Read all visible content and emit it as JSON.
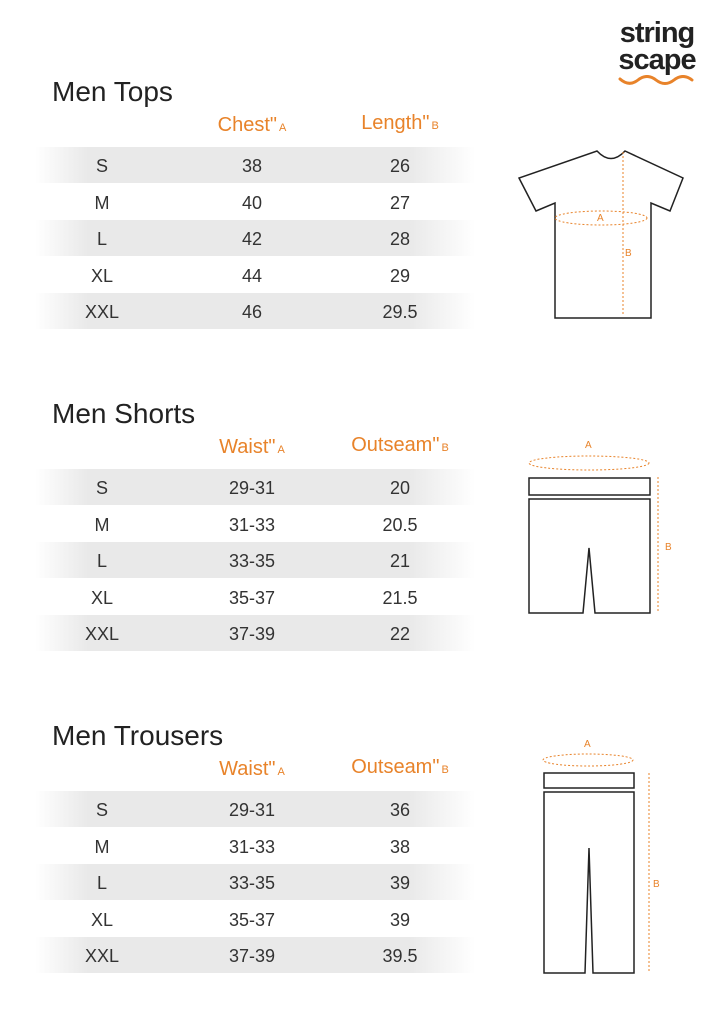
{
  "brand": {
    "line1": "string",
    "line2": "scape",
    "accent": "#e8832a"
  },
  "sections": [
    {
      "title": "Men Tops",
      "col_a": "Chest\"",
      "col_a_mark": "A",
      "col_b": "Length\"",
      "col_b_mark": "B",
      "rows": [
        [
          "S",
          "38",
          "26"
        ],
        [
          "M",
          "40",
          "27"
        ],
        [
          "L",
          "42",
          "28"
        ],
        [
          "XL",
          "44",
          "29"
        ],
        [
          "XXL",
          "46",
          "29.5"
        ]
      ],
      "figure": {
        "icon": "t-shirt-diagram",
        "label_a": "A",
        "label_b": "B"
      }
    },
    {
      "title": "Men Shorts",
      "col_a": "Waist\"",
      "col_a_mark": "A",
      "col_b": "Outseam\"",
      "col_b_mark": "B",
      "rows": [
        [
          "S",
          "29-31",
          "20"
        ],
        [
          "M",
          "31-33",
          "20.5"
        ],
        [
          "L",
          "33-35",
          "21"
        ],
        [
          "XL",
          "35-37",
          "21.5"
        ],
        [
          "XXL",
          "37-39",
          "22"
        ]
      ],
      "figure": {
        "icon": "shorts-diagram",
        "label_a": "A",
        "label_b": "B"
      }
    },
    {
      "title": "Men Trousers",
      "col_a": "Waist\"",
      "col_a_mark": "A",
      "col_b": "Outseam\"",
      "col_b_mark": "B",
      "rows": [
        [
          "S",
          "29-31",
          "36"
        ],
        [
          "M",
          "31-33",
          "38"
        ],
        [
          "L",
          "33-35",
          "39"
        ],
        [
          "XL",
          "35-37",
          "39"
        ],
        [
          "XXL",
          "37-39",
          "39.5"
        ]
      ],
      "figure": {
        "icon": "trousers-diagram",
        "label_a": "A",
        "label_b": "B"
      }
    }
  ]
}
